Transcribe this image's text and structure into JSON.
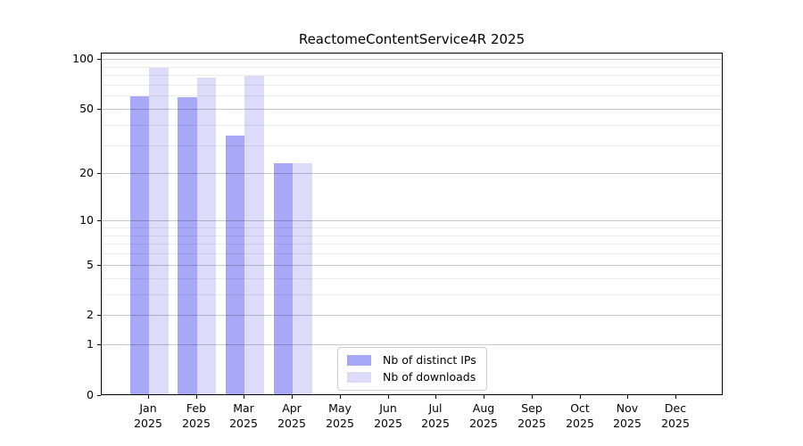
{
  "figure": {
    "title": "ReactomeContentService4R 2025"
  },
  "chart_data": {
    "type": "bar",
    "title": "ReactomeContentService4R 2025",
    "xlabel": "",
    "ylabel": "",
    "grid": true,
    "legend_position": "bottom-center-inside",
    "categories": [
      {
        "month": "Jan",
        "year": "2025"
      },
      {
        "month": "Feb",
        "year": "2025"
      },
      {
        "month": "Mar",
        "year": "2025"
      },
      {
        "month": "Apr",
        "year": "2025"
      },
      {
        "month": "May",
        "year": "2025"
      },
      {
        "month": "Jun",
        "year": "2025"
      },
      {
        "month": "Jul",
        "year": "2025"
      },
      {
        "month": "Aug",
        "year": "2025"
      },
      {
        "month": "Sep",
        "year": "2025"
      },
      {
        "month": "Oct",
        "year": "2025"
      },
      {
        "month": "Nov",
        "year": "2025"
      },
      {
        "month": "Dec",
        "year": "2025"
      }
    ],
    "series": [
      {
        "name": "Nb of distinct IPs",
        "color": "#a8a8f8",
        "values": [
          59,
          58,
          34,
          23,
          0,
          0,
          0,
          0,
          0,
          0,
          0,
          0
        ]
      },
      {
        "name": "Nb of downloads",
        "color": "#dcdcfa",
        "values": [
          88,
          76,
          78,
          23,
          0,
          0,
          0,
          0,
          0,
          0,
          0,
          0
        ]
      }
    ],
    "y_axis": {
      "scale": "log10(value+1)",
      "ticks": [
        0,
        1,
        2,
        5,
        10,
        20,
        50,
        100
      ],
      "minor_gridlines": [
        3,
        4,
        6,
        7,
        8,
        9,
        30,
        40,
        60,
        70,
        80,
        90
      ],
      "top_value": 108,
      "ylim": [
        0,
        108
      ]
    }
  },
  "legend": {
    "items": [
      {
        "label": "Nb of distinct IPs"
      },
      {
        "label": "Nb of downloads"
      }
    ]
  }
}
